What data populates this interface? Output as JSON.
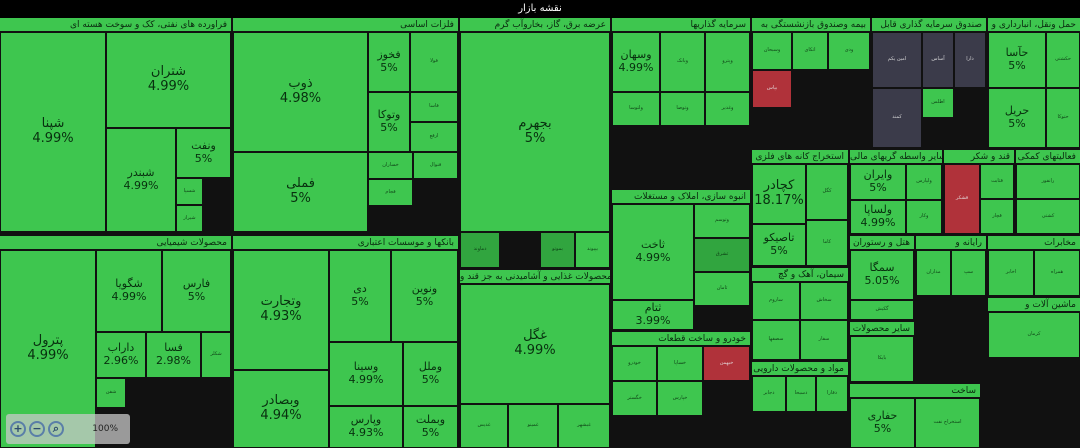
{
  "header": {
    "title": "نقشه بازار"
  },
  "colors": {
    "up": "#3ec64f",
    "up_dark": "#31a53f",
    "down": "#b0323a",
    "neutral": "#3b3b4a",
    "border": "#111111"
  },
  "zoom": {
    "level": "100%",
    "zoom_in": "+",
    "zoom_out": "−",
    "reset": "⌕"
  },
  "sectors": [
    {
      "id": "petro",
      "title": "فراورده های نفتی، کک و سوخت هسته ای",
      "tiles": [
        {
          "n": "شپنا",
          "p": "4.99%"
        },
        {
          "n": "شتران",
          "p": "4.99%"
        },
        {
          "n": "شبندر",
          "p": "4.99%"
        },
        {
          "n": "ونفت",
          "p": "5%"
        },
        {
          "n": "شسپا",
          "p": ""
        },
        {
          "n": "شیراز",
          "p": ""
        }
      ]
    },
    {
      "id": "metals",
      "title": "فلزات اساسی",
      "tiles": [
        {
          "n": "ذوب",
          "p": "4.98%"
        },
        {
          "n": "فخوز",
          "p": "5%"
        },
        {
          "n": "فولا",
          "p": ""
        },
        {
          "n": "وتوکا",
          "p": "5%"
        },
        {
          "n": "فملی",
          "p": "5%"
        },
        {
          "n": "فاسا",
          "p": ""
        },
        {
          "n": "ارفع",
          "p": ""
        },
        {
          "n": "خساران",
          "p": ""
        },
        {
          "n": "فنوال",
          "p": ""
        },
        {
          "n": "فجام",
          "p": ""
        }
      ]
    },
    {
      "id": "power",
      "title": "عرضه برق، گاز، بخاروآب گرم",
      "tiles": [
        {
          "n": "بجهرم",
          "p": "5%"
        },
        {
          "n": "دماوند",
          "p": ""
        },
        {
          "n": "بموتو",
          "p": ""
        },
        {
          "n": "بپیوند",
          "p": ""
        }
      ]
    },
    {
      "id": "invest",
      "title": "سرمایه گذاریها",
      "tiles": [
        {
          "n": "وسهان",
          "p": "4.99%"
        },
        {
          "n": "وبانک",
          "p": ""
        },
        {
          "n": "وپترو",
          "p": ""
        },
        {
          "n": "ولتوسا",
          "p": ""
        },
        {
          "n": "وتوصا",
          "p": ""
        },
        {
          "n": "وغدیر",
          "p": ""
        }
      ]
    },
    {
      "id": "insurance",
      "title": "بیمه وصندوق بازنشستگی به",
      "tiles": [
        {
          "n": "وسبحان",
          "p": ""
        },
        {
          "n": "اتکای",
          "p": ""
        },
        {
          "n": "ودی",
          "p": ""
        },
        {
          "n": "بپاس",
          "p": ""
        }
      ]
    },
    {
      "id": "fund",
      "title": "صندوق سرمایه گذاری قابل",
      "tiles": [
        {
          "n": "امین یکم",
          "p": ""
        },
        {
          "n": "آساس",
          "p": ""
        },
        {
          "n": "کمند",
          "p": ""
        },
        {
          "n": "اطلس",
          "p": ""
        },
        {
          "n": "دارا",
          "p": ""
        }
      ]
    },
    {
      "id": "transport",
      "title": "حمل ونقل، انبارداری و",
      "tiles": [
        {
          "n": "حآسا",
          "p": "5%"
        },
        {
          "n": "حریل",
          "p": "5%"
        },
        {
          "n": "حکشتی",
          "p": ""
        },
        {
          "n": "حتوکا",
          "p": ""
        }
      ]
    },
    {
      "id": "chem",
      "title": "محصولات شیمیایی",
      "tiles": [
        {
          "n": "پترول",
          "p": "4.99%"
        },
        {
          "n": "شگویا",
          "p": "4.99%"
        },
        {
          "n": "فارس",
          "p": "5%"
        },
        {
          "n": "داراب",
          "p": "2.96%"
        },
        {
          "n": "فسا",
          "p": "2.98%"
        },
        {
          "n": "شکلر",
          "p": ""
        },
        {
          "n": "شفن",
          "p": ""
        }
      ]
    },
    {
      "id": "banks",
      "title": "بانکها و موسسات اعتباری",
      "tiles": [
        {
          "n": "وتجارت",
          "p": "4.93%"
        },
        {
          "n": "دی",
          "p": "5%"
        },
        {
          "n": "ونوین",
          "p": "5%"
        },
        {
          "n": "وسینا",
          "p": "4.99%"
        },
        {
          "n": "وملل",
          "p": "5%"
        },
        {
          "n": "وبصادر",
          "p": "4.94%"
        },
        {
          "n": "وپارس",
          "p": "4.93%"
        },
        {
          "n": "وبملت",
          "p": "5%"
        }
      ]
    },
    {
      "id": "food",
      "title": "محصولات غذایی و آشامیدنی به جز قند و",
      "tiles": [
        {
          "n": "غگل",
          "p": "4.99%"
        },
        {
          "n": "غدیس",
          "p": ""
        },
        {
          "n": "غمینو",
          "p": ""
        },
        {
          "n": "غبشهر",
          "p": ""
        }
      ]
    },
    {
      "id": "realestate",
      "title": "انبوه سازی، املاک و مستغلات",
      "tiles": [
        {
          "n": "ثاخت",
          "p": "4.99%"
        },
        {
          "n": "ثتام",
          "p": "3.99%"
        },
        {
          "n": "وتوسم",
          "p": ""
        },
        {
          "n": "ثشرق",
          "p": ""
        },
        {
          "n": "ثامان",
          "p": ""
        }
      ]
    },
    {
      "id": "auto",
      "title": "خودرو و ساخت قطعات",
      "tiles": [
        {
          "n": "خودرو",
          "p": ""
        },
        {
          "n": "خساپا",
          "p": ""
        },
        {
          "n": "خگستر",
          "p": ""
        },
        {
          "n": "خپارس",
          "p": ""
        },
        {
          "n": "خبهمن",
          "p": ""
        }
      ]
    },
    {
      "id": "mining",
      "title": "استخراج کانه های فلزی",
      "tiles": [
        {
          "n": "کچادر",
          "p": "18.17%"
        },
        {
          "n": "تاصیکو",
          "p": "5%"
        },
        {
          "n": "کگل",
          "p": ""
        },
        {
          "n": "کاما",
          "p": ""
        }
      ]
    },
    {
      "id": "cement",
      "title": "سیمان، آهک و گچ",
      "tiles": [
        {
          "n": "ساروم",
          "p": ""
        },
        {
          "n": "سخاش",
          "p": ""
        },
        {
          "n": "سصفها",
          "p": ""
        },
        {
          "n": "سفار",
          "p": ""
        }
      ]
    },
    {
      "id": "pharma",
      "title": "مواد و محصولات دارویی",
      "tiles": [
        {
          "n": "دجابر",
          "p": ""
        },
        {
          "n": "دسبحا",
          "p": ""
        },
        {
          "n": "دفارا",
          "p": ""
        }
      ]
    },
    {
      "id": "financial",
      "title": "سایر واسطه گریهای مالی",
      "tiles": [
        {
          "n": "وایران",
          "p": "5%"
        },
        {
          "n": "ولساپا",
          "p": "4.99%"
        },
        {
          "n": "ولپارس",
          "p": ""
        },
        {
          "n": "وکار",
          "p": ""
        }
      ]
    },
    {
      "id": "sugar",
      "title": "قند و شکر",
      "tiles": [
        {
          "n": "قشکر",
          "p": ""
        },
        {
          "n": "قثابت",
          "p": ""
        },
        {
          "n": "قچار",
          "p": ""
        }
      ]
    },
    {
      "id": "services",
      "title": "فعالیتهای کمکی",
      "tiles": [
        {
          "n": "رانفور",
          "p": ""
        },
        {
          "n": "کشتی",
          "p": ""
        }
      ]
    },
    {
      "id": "hotel",
      "title": "هتل و رستوران",
      "tiles": [
        {
          "n": "سمگا",
          "p": "5.05%"
        },
        {
          "n": "گکیش",
          "p": ""
        }
      ]
    },
    {
      "id": "tech",
      "title": "رایانه و",
      "tiles": [
        {
          "n": "مداران",
          "p": ""
        },
        {
          "n": "سپ",
          "p": ""
        }
      ]
    },
    {
      "id": "telecom",
      "title": "مخابرات",
      "tiles": [
        {
          "n": "اخابر",
          "p": ""
        },
        {
          "n": "همراه",
          "p": ""
        }
      ]
    },
    {
      "id": "machinery",
      "title": "ماشین آلات و",
      "tiles": [
        {
          "n": "کرمان",
          "p": ""
        }
      ]
    },
    {
      "id": "misc",
      "title": "سایر محصولات",
      "tiles": [
        {
          "n": "بایکا",
          "p": ""
        }
      ]
    },
    {
      "id": "build",
      "title": "ساخت",
      "tiles": [
        {
          "n": "حفاری",
          "p": "5%"
        },
        {
          "n": "استخراج نفت",
          "p": ""
        }
      ]
    }
  ]
}
